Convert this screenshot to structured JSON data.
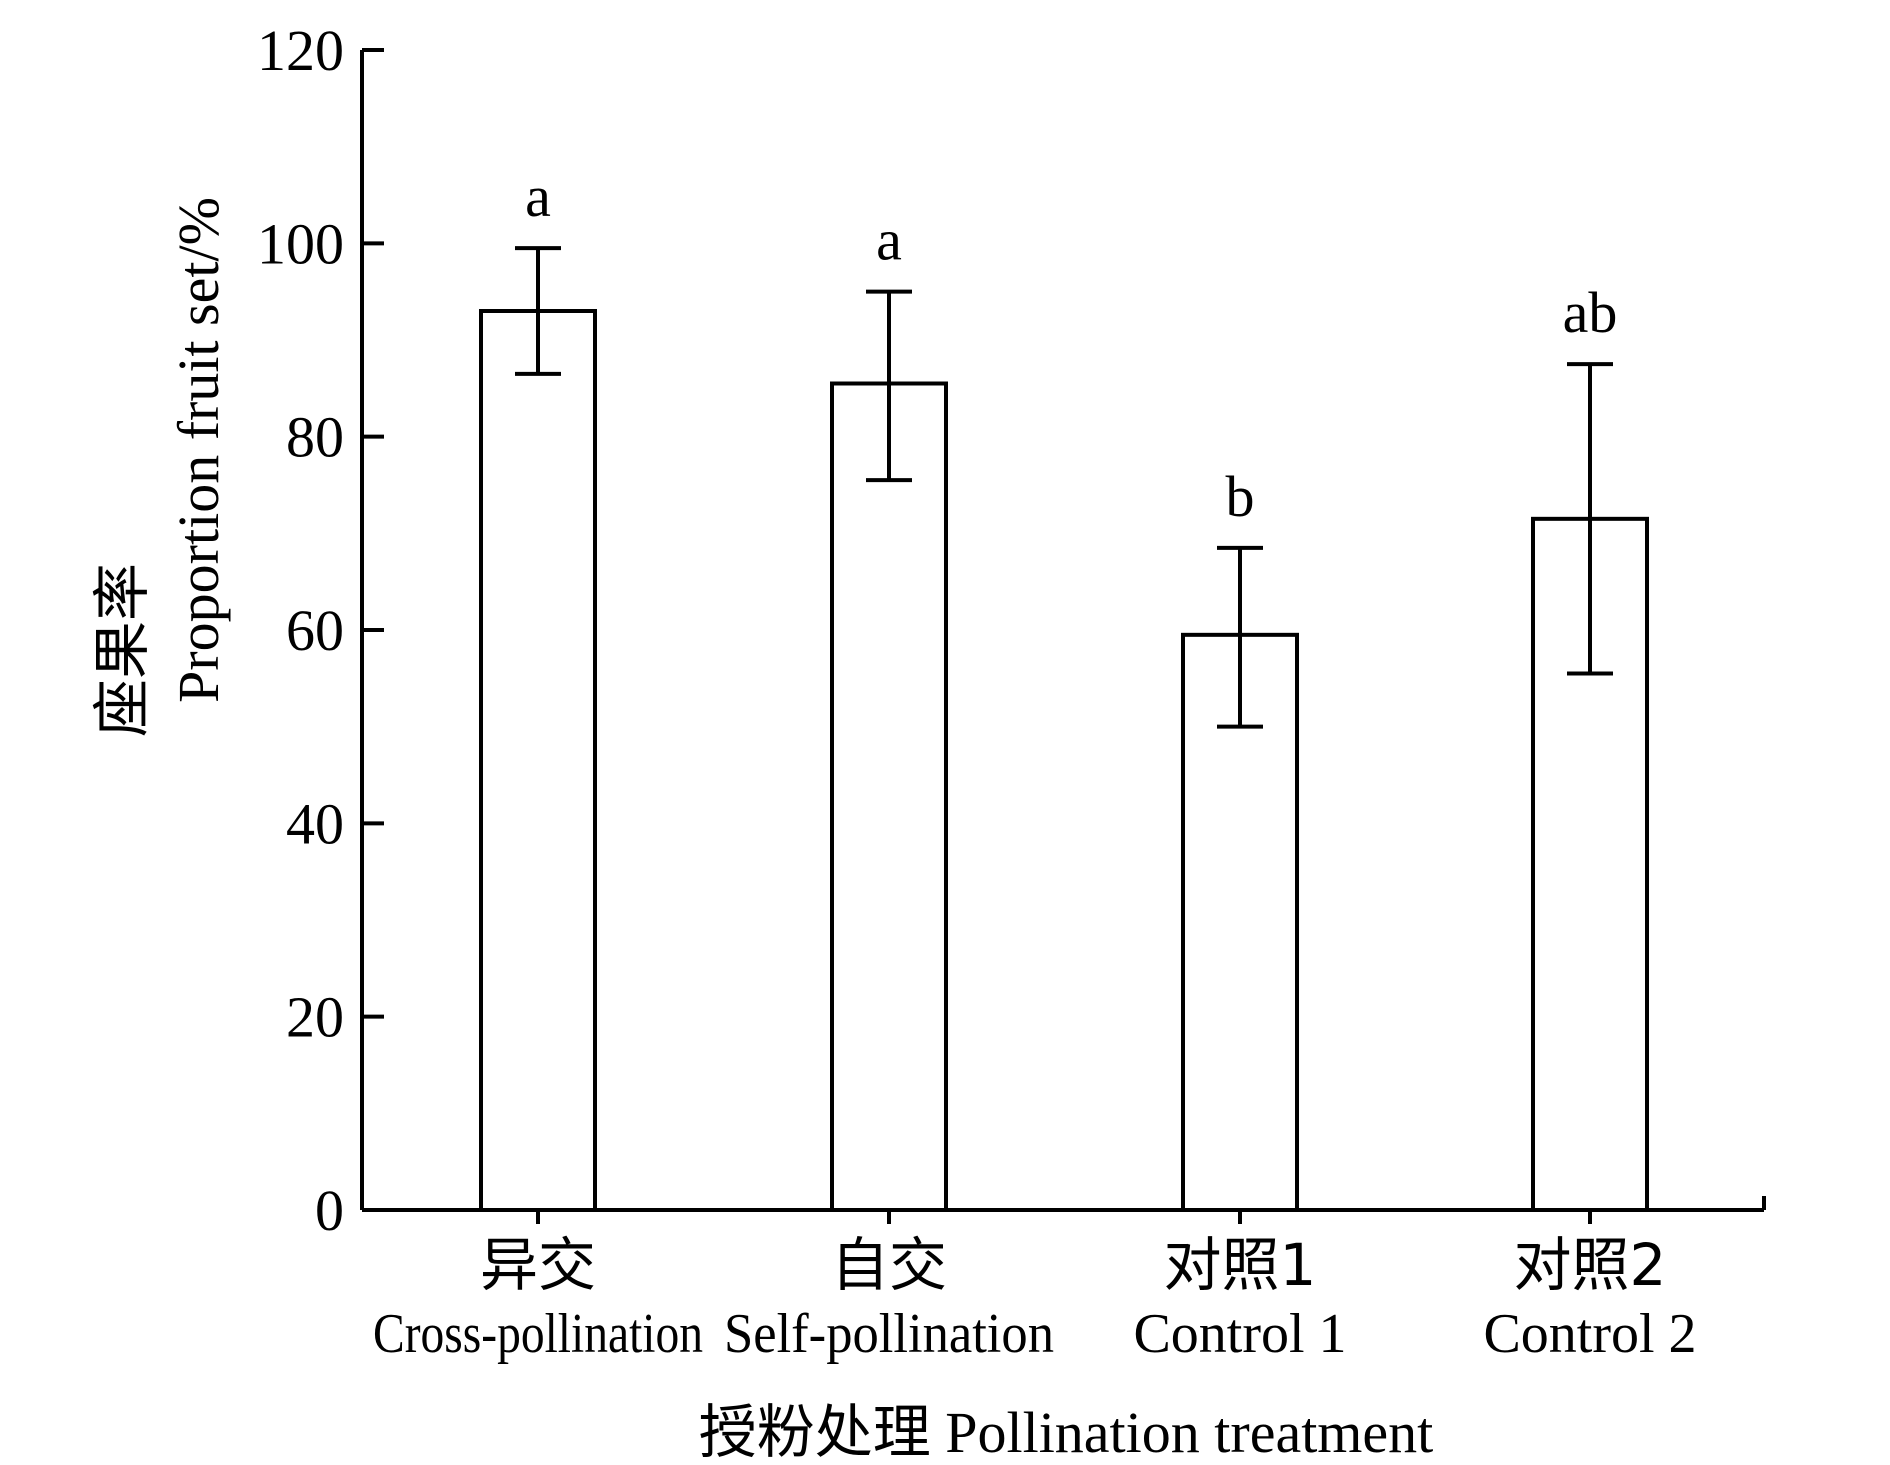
{
  "chart_data": {
    "type": "bar",
    "categories": [
      {
        "cn": "异交",
        "en": "Cross-pollination"
      },
      {
        "cn": "自交",
        "en": "Self-pollination"
      },
      {
        "cn": "对照1",
        "en": "Control 1"
      },
      {
        "cn": "对照2",
        "en": "Control 2"
      }
    ],
    "values": [
      93,
      85.5,
      59.5,
      71.5
    ],
    "error_bars": [
      {
        "low": 86.5,
        "high": 99.5
      },
      {
        "low": 75.5,
        "high": 95
      },
      {
        "low": 50,
        "high": 68.5
      },
      {
        "low": 55.5,
        "high": 87.5
      }
    ],
    "significance_labels": [
      "a",
      "a",
      "b",
      "ab"
    ],
    "ylabel_cn": "座果率",
    "ylabel_en": "Proportion fruit set/%",
    "xlabel": "授粉处理 Pollination treatment",
    "ylim": [
      0,
      120
    ],
    "yticks": [
      0,
      20,
      40,
      60,
      80,
      100,
      120
    ],
    "grid": false,
    "bar_fill": "#ffffff",
    "bar_stroke": "#000000"
  }
}
